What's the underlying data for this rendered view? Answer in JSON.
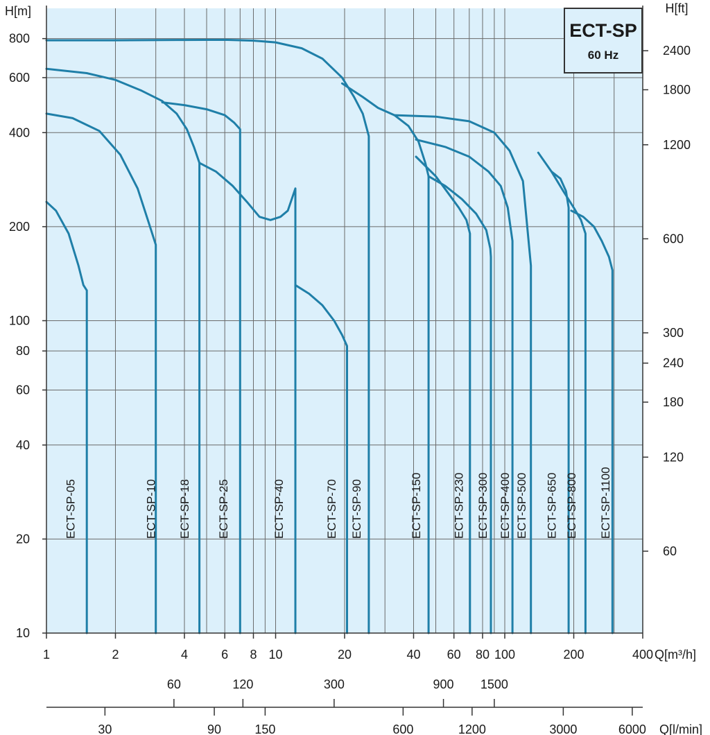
{
  "chart_data": {
    "type": "line",
    "title": "ECT-SP",
    "subtitle": "60 Hz",
    "x_scale": "log",
    "y_scale": "log",
    "xlim": [
      1,
      400
    ],
    "ylim": [
      10,
      1000
    ],
    "grid": true,
    "axes": {
      "left": {
        "label": "H[m]",
        "ticks": [
          10,
          20,
          40,
          60,
          80,
          100,
          200,
          400,
          600,
          800
        ]
      },
      "right": {
        "label": "H[ft]",
        "ticks": [
          60,
          120,
          180,
          240,
          300,
          600,
          1200,
          1800,
          2400
        ]
      },
      "bottom": {
        "label": "Q[m³/h]",
        "ticks": [
          1,
          2,
          4,
          6,
          8,
          10,
          20,
          40,
          60,
          80,
          100,
          200,
          400
        ]
      },
      "bottom2": {
        "ticks": [
          60,
          120,
          300,
          900,
          1500
        ]
      },
      "bottom3": {
        "label": "Q[l/min]",
        "ticks": [
          30,
          90,
          150,
          600,
          1200,
          3000,
          6000
        ]
      }
    },
    "series": [
      {
        "name": "ECT-SP-05",
        "label_x": 1.27,
        "x": [
          1,
          1.1,
          1.25,
          1.38,
          1.45,
          1.5,
          1.5
        ],
        "y": [
          240,
          225,
          190,
          150,
          130,
          125,
          10
        ]
      },
      {
        "name": "ECT-SP-10",
        "label_x": 2.85,
        "x": [
          1,
          1.3,
          1.7,
          2.1,
          2.5,
          2.8,
          3.0,
          3.0
        ],
        "y": [
          460,
          445,
          405,
          340,
          265,
          205,
          175,
          10
        ]
      },
      {
        "name": "ECT-SP-18",
        "label_x": 4.0,
        "x": [
          1,
          1.5,
          2.0,
          2.6,
          3.2,
          3.7,
          4.1,
          4.4,
          4.65,
          4.65
        ],
        "y": [
          640,
          620,
          590,
          545,
          505,
          460,
          410,
          360,
          320,
          10
        ]
      },
      {
        "name": "ECT-SP-25",
        "label_x": 5.9,
        "x": [
          3.2,
          4.0,
          5.0,
          6.0,
          6.6,
          7.0,
          7.0
        ],
        "y": [
          500,
          490,
          475,
          455,
          430,
          410,
          10
        ]
      },
      {
        "name": "ECT-SP-40",
        "label_x": 10.3,
        "x": [
          4.65,
          5.5,
          6.5,
          7.5,
          8.5,
          9.5,
          10.5,
          11.3,
          12.2,
          12.2
        ],
        "y": [
          320,
          300,
          270,
          240,
          215,
          210,
          215,
          225,
          265,
          10
        ]
      },
      {
        "name": "ECT-SP-70",
        "label_x": 17.5,
        "x": [
          12.2,
          14,
          16,
          18,
          19.5,
          20.5,
          20.5
        ],
        "y": [
          130,
          122,
          112,
          100,
          90,
          83,
          10
        ]
      },
      {
        "name": "ECT-SP-90",
        "label_x": 22.5,
        "x": [
          1,
          2,
          4,
          6,
          8,
          10,
          13,
          16,
          19.5,
          22,
          24,
          25.5,
          25.5
        ],
        "y": [
          790,
          790,
          792,
          793,
          788,
          778,
          745,
          690,
          600,
          520,
          460,
          390,
          10
        ]
      },
      {
        "name": "ECT-SP-150",
        "label_x": 41,
        "x": [
          19.5,
          24,
          28,
          33,
          38,
          42,
          45,
          46.5,
          46.5
        ],
        "y": [
          575,
          520,
          480,
          455,
          420,
          375,
          320,
          290,
          10
        ]
      },
      {
        "name": "ECT-SP-230",
        "label_x": 63,
        "x": [
          41,
          50,
          58,
          63,
          68,
          70.5,
          70.5
        ],
        "y": [
          335,
          290,
          250,
          230,
          210,
          190,
          10
        ]
      },
      {
        "name": "ECT-SP-300",
        "label_x": 80,
        "x": [
          46.5,
          55,
          65,
          75,
          83,
          86.5,
          87,
          87
        ],
        "y": [
          290,
          270,
          245,
          220,
          195,
          170,
          160,
          10
        ]
      },
      {
        "name": "ECT-SP-400",
        "label_x": 100,
        "x": [
          41,
          55,
          70,
          85,
          96,
          103,
          108,
          108
        ],
        "y": [
          380,
          360,
          335,
          300,
          270,
          230,
          180,
          10
        ]
      },
      {
        "name": "ECT-SP-500",
        "label_x": 118,
        "x": [
          33,
          50,
          70,
          90,
          105,
          120,
          130,
          130
        ],
        "y": [
          455,
          450,
          435,
          400,
          350,
          280,
          150,
          10
        ]
      },
      {
        "name": "ECT-SP-650",
        "label_x": 160,
        "x": [
          160,
          175,
          185,
          190,
          190
        ],
        "y": [
          300,
          285,
          260,
          230,
          10
        ]
      },
      {
        "name": "ECT-SP-800",
        "label_x": 195,
        "x": [
          140,
          160,
          180,
          200,
          215,
          225,
          225
        ],
        "y": [
          345,
          300,
          260,
          230,
          210,
          190,
          10
        ]
      },
      {
        "name": "ECT-SP-1100",
        "label_x": 275,
        "x": [
          195,
          220,
          245,
          265,
          285,
          295,
          295
        ],
        "y": [
          225,
          215,
          200,
          180,
          160,
          145,
          10
        ]
      }
    ]
  }
}
